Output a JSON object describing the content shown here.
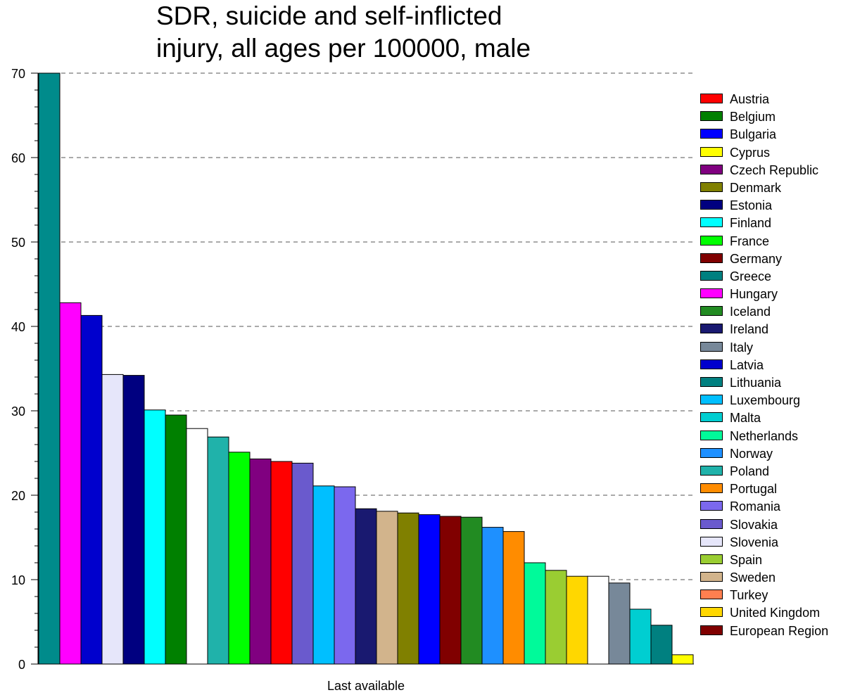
{
  "chart_data": {
    "type": "bar",
    "title_lines": [
      "SDR, suicide and self-inflicted",
      "injury, all ages per 100000, male"
    ],
    "xlabel": "Last available",
    "ylabel": "",
    "ylim": [
      0,
      70
    ],
    "yticks": [
      "0",
      "10",
      "20",
      "30",
      "40",
      "50",
      "60",
      "70"
    ],
    "grid": true,
    "legend_position": "right",
    "legend": [
      {
        "label": "Austria",
        "color": "#ff0000"
      },
      {
        "label": "Belgium",
        "color": "#008000"
      },
      {
        "label": "Bulgaria",
        "color": "#0000ff"
      },
      {
        "label": "Cyprus",
        "color": "#ffff00"
      },
      {
        "label": "Czech Republic",
        "color": "#800080"
      },
      {
        "label": "Denmark",
        "color": "#808000"
      },
      {
        "label": "Estonia",
        "color": "#000080"
      },
      {
        "label": "Finland",
        "color": "#00ffff"
      },
      {
        "label": "France",
        "color": "#00ff00"
      },
      {
        "label": "Germany",
        "color": "#800000"
      },
      {
        "label": "Greece",
        "color": "#008080"
      },
      {
        "label": "Hungary",
        "color": "#ff00ff"
      },
      {
        "label": "Iceland",
        "color": "#228b22"
      },
      {
        "label": "Ireland",
        "color": "#191970"
      },
      {
        "label": "Italy",
        "color": "#778899"
      },
      {
        "label": "Latvia",
        "color": "#0000cd"
      },
      {
        "label": "Lithuania",
        "color": "#008080"
      },
      {
        "label": "Luxembourg",
        "color": "#00bfff"
      },
      {
        "label": "Malta",
        "color": "#00ced1"
      },
      {
        "label": "Netherlands",
        "color": "#00fa9a"
      },
      {
        "label": "Norway",
        "color": "#1e90ff"
      },
      {
        "label": "Poland",
        "color": "#20b2aa"
      },
      {
        "label": "Portugal",
        "color": "#ff8c00"
      },
      {
        "label": "Romania",
        "color": "#7b68ee"
      },
      {
        "label": "Slovakia",
        "color": "#6a5acd"
      },
      {
        "label": "Slovenia",
        "color": "#e6e6fa"
      },
      {
        "label": "Spain",
        "color": "#9acd32"
      },
      {
        "label": "Sweden",
        "color": "#d2b48c"
      },
      {
        "label": "Turkey",
        "color": "#ff7f50"
      },
      {
        "label": "United Kingdom",
        "color": "#ffd700"
      },
      {
        "label": "European Region",
        "color": "#800000"
      }
    ],
    "bars": [
      {
        "value": 70.0,
        "color": "#008b8b"
      },
      {
        "value": 42.8,
        "color": "#ff00ff"
      },
      {
        "value": 41.3,
        "color": "#0000cd"
      },
      {
        "value": 34.3,
        "color": "#e6e6fa"
      },
      {
        "value": 34.2,
        "color": "#000080"
      },
      {
        "value": 30.1,
        "color": "#00ffff"
      },
      {
        "value": 29.5,
        "color": "#008000"
      },
      {
        "value": 27.9,
        "color": "#ffffff"
      },
      {
        "value": 26.9,
        "color": "#20b2aa"
      },
      {
        "value": 25.1,
        "color": "#00ff00"
      },
      {
        "value": 24.3,
        "color": "#800080"
      },
      {
        "value": 24.0,
        "color": "#ff0000"
      },
      {
        "value": 23.8,
        "color": "#6a5acd"
      },
      {
        "value": 21.1,
        "color": "#00bfff"
      },
      {
        "value": 21.0,
        "color": "#7b68ee"
      },
      {
        "value": 18.4,
        "color": "#191970"
      },
      {
        "value": 18.1,
        "color": "#d2b48c"
      },
      {
        "value": 17.9,
        "color": "#808000"
      },
      {
        "value": 17.7,
        "color": "#0000ff"
      },
      {
        "value": 17.5,
        "color": "#800000"
      },
      {
        "value": 17.4,
        "color": "#228b22"
      },
      {
        "value": 16.2,
        "color": "#1e90ff"
      },
      {
        "value": 15.7,
        "color": "#ff8c00"
      },
      {
        "value": 12.0,
        "color": "#00fa9a"
      },
      {
        "value": 11.1,
        "color": "#9acd32"
      },
      {
        "value": 10.4,
        "color": "#ffd700"
      },
      {
        "value": 10.4,
        "color": "#ffffff"
      },
      {
        "value": 9.6,
        "color": "#778899"
      },
      {
        "value": 6.5,
        "color": "#00ced1"
      },
      {
        "value": 4.6,
        "color": "#008080"
      },
      {
        "value": 1.1,
        "color": "#ffff00"
      }
    ]
  }
}
